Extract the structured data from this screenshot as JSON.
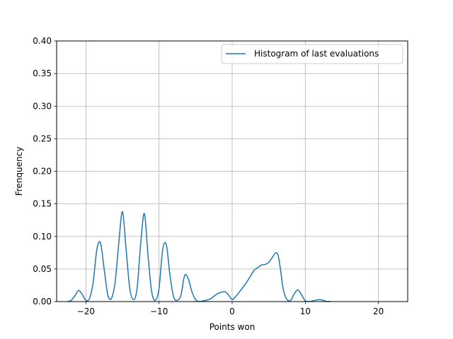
{
  "chart_data": {
    "type": "line",
    "title": "",
    "xlabel": "Points won",
    "ylabel": "Frenquency",
    "xlim": [
      -24,
      24
    ],
    "ylim": [
      0,
      0.4
    ],
    "grid": true,
    "legend_position": "upper-right",
    "x_ticks": [
      -20,
      -10,
      0,
      10,
      20
    ],
    "x_tick_labels": [
      "−20",
      "−10",
      "0",
      "10",
      "20"
    ],
    "y_ticks": [
      0,
      0.05,
      0.1,
      0.15,
      0.2,
      0.25,
      0.3,
      0.35,
      0.4
    ],
    "y_tick_labels": [
      "0.00",
      "0.05",
      "0.10",
      "0.15",
      "0.20",
      "0.25",
      "0.30",
      "0.35",
      "0.40"
    ],
    "series": [
      {
        "name": "Histogram of last evaluations",
        "color": "#1f77b4",
        "x": [
          -22.5,
          -22,
          -21.5,
          -21,
          -20.5,
          -20,
          -19.5,
          -19,
          -18.5,
          -18,
          -17.5,
          -17,
          -16.5,
          -16,
          -15.5,
          -15,
          -14.5,
          -14,
          -13.5,
          -13,
          -12.5,
          -12,
          -11.5,
          -11,
          -10.5,
          -10,
          -9.5,
          -9,
          -8.5,
          -8,
          -7.5,
          -7,
          -6.5,
          -6,
          -5.5,
          -5,
          -4.5,
          -4,
          -3,
          -2,
          -1,
          -0.5,
          0,
          0.5,
          1,
          2,
          3,
          3.5,
          4,
          4.5,
          5,
          5.5,
          6,
          6.3,
          6.6,
          7,
          7.5,
          8,
          8.5,
          9,
          9.5,
          10,
          10.5,
          11,
          12,
          13,
          13.5
        ],
        "y": [
          0.0,
          0.002,
          0.009,
          0.017,
          0.011,
          0.002,
          0.005,
          0.03,
          0.08,
          0.09,
          0.05,
          0.01,
          0.005,
          0.03,
          0.09,
          0.138,
          0.08,
          0.02,
          0.003,
          0.02,
          0.09,
          0.135,
          0.07,
          0.015,
          0.002,
          0.02,
          0.08,
          0.087,
          0.04,
          0.007,
          0.002,
          0.01,
          0.04,
          0.035,
          0.015,
          0.003,
          0.0,
          0.001,
          0.004,
          0.012,
          0.015,
          0.01,
          0.003,
          0.008,
          0.015,
          0.03,
          0.048,
          0.052,
          0.056,
          0.057,
          0.06,
          0.068,
          0.075,
          0.07,
          0.05,
          0.018,
          0.003,
          0.002,
          0.012,
          0.018,
          0.01,
          0.001,
          0.0,
          0.001,
          0.003,
          0.0,
          0.0
        ]
      }
    ]
  }
}
